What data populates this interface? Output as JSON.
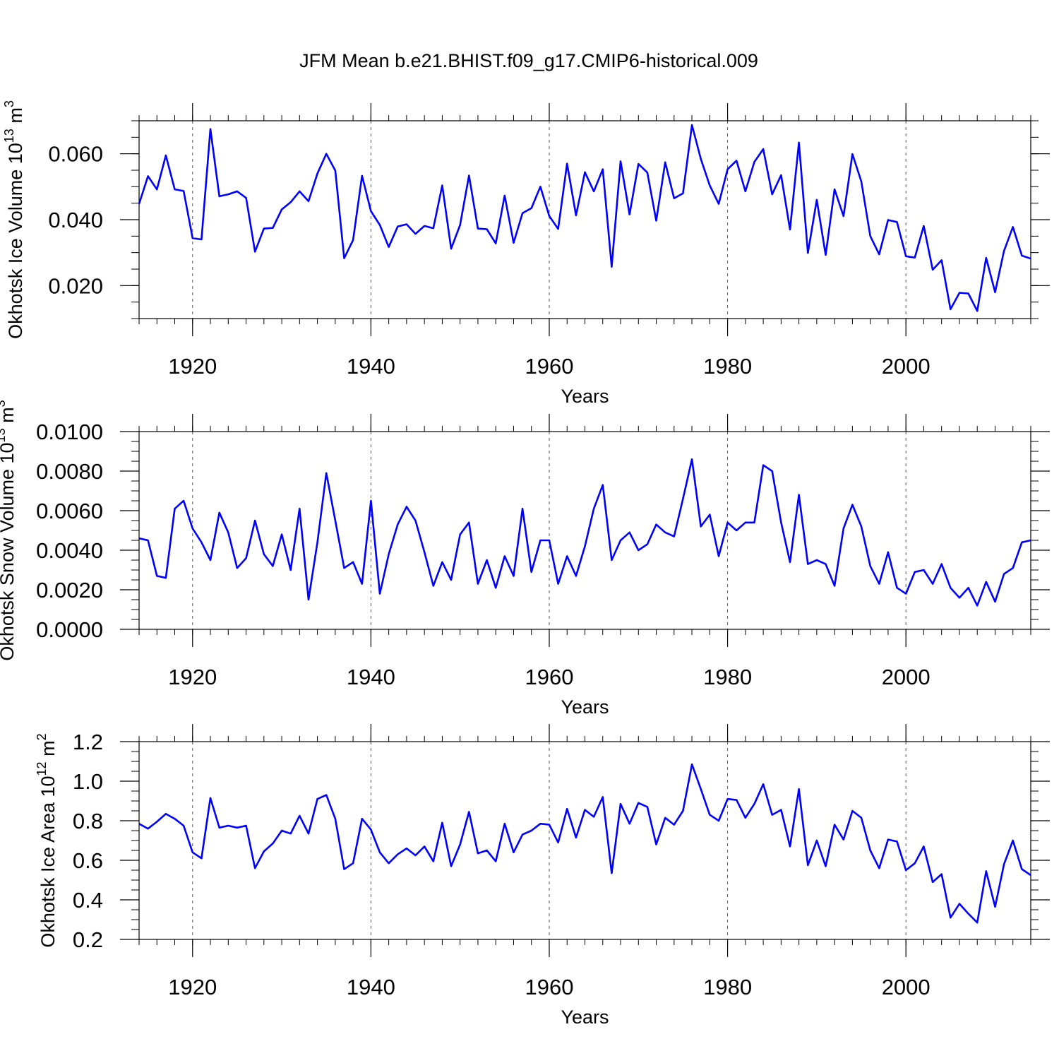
{
  "figure": {
    "title": "JFM Mean b.e21.BHIST.f09_g17.CMIP6-historical.009"
  },
  "chart_data": [
    {
      "type": "line",
      "ylabel_main": "Okhotsk Ice Volume 10",
      "ylabel_exp": "13",
      "ylabel_unit": " m",
      "ylabel_unit_exp": "3",
      "xlabel": "Years",
      "xlim": [
        1914,
        2014
      ],
      "ylim": [
        0.01,
        0.07
      ],
      "x_ticks": [
        1920,
        1940,
        1960,
        1980,
        2000
      ],
      "x_tick_labels": [
        "1920",
        "1940",
        "1960",
        "1980",
        "2000"
      ],
      "y_ticks": [
        0.02,
        0.04,
        0.06
      ],
      "y_tick_labels": [
        "0.020",
        "0.040",
        "0.060"
      ],
      "y_minor_step": 0.005,
      "line_color": "#0000ff",
      "grid": "dashed-vertical-at-major-x",
      "x_start": 1914,
      "values": [
        0.0448,
        0.0532,
        0.0492,
        0.0595,
        0.0492,
        0.0487,
        0.0344,
        0.034,
        0.0675,
        0.0471,
        0.0477,
        0.0486,
        0.0466,
        0.0303,
        0.0373,
        0.0375,
        0.0431,
        0.0453,
        0.0486,
        0.0456,
        0.054,
        0.06,
        0.0549,
        0.0283,
        0.0338,
        0.0533,
        0.0426,
        0.0384,
        0.0317,
        0.0379,
        0.0386,
        0.0357,
        0.0381,
        0.0374,
        0.0504,
        0.0312,
        0.0384,
        0.0534,
        0.0373,
        0.0371,
        0.0328,
        0.0473,
        0.033,
        0.042,
        0.0435,
        0.05,
        0.0411,
        0.0372,
        0.057,
        0.0413,
        0.0544,
        0.0486,
        0.0553,
        0.0257,
        0.0577,
        0.0416,
        0.0569,
        0.0543,
        0.0397,
        0.0574,
        0.0465,
        0.048,
        0.0687,
        0.0584,
        0.0504,
        0.0448,
        0.0553,
        0.0579,
        0.0486,
        0.0575,
        0.0614,
        0.0477,
        0.0535,
        0.037,
        0.0634,
        0.0299,
        0.046,
        0.0293,
        0.0492,
        0.0411,
        0.0599,
        0.0516,
        0.035,
        0.0295,
        0.0399,
        0.0393,
        0.0289,
        0.0285,
        0.0381,
        0.0248,
        0.0277,
        0.0128,
        0.0178,
        0.0176,
        0.0123,
        0.0284,
        0.018,
        0.0305,
        0.0378,
        0.0291,
        0.0282
      ]
    },
    {
      "type": "line",
      "ylabel_main": "Okhotsk Snow Volume 10",
      "ylabel_exp": "13",
      "ylabel_unit": " m",
      "ylabel_unit_exp": "3",
      "xlabel": "Years",
      "xlim": [
        1914,
        2014
      ],
      "ylim": [
        0.0,
        0.01
      ],
      "x_ticks": [
        1920,
        1940,
        1960,
        1980,
        2000
      ],
      "x_tick_labels": [
        "1920",
        "1940",
        "1960",
        "1980",
        "2000"
      ],
      "y_ticks": [
        0.0,
        0.002,
        0.004,
        0.006,
        0.008,
        0.01
      ],
      "y_tick_labels": [
        "0.0000",
        "0.0020",
        "0.0040",
        "0.0060",
        "0.0080",
        "0.0100"
      ],
      "y_minor_step": 0.0005,
      "line_color": "#0000ff",
      "grid": "dashed-vertical-at-major-x",
      "x_start": 1914,
      "values": [
        0.0046,
        0.0045,
        0.0027,
        0.0026,
        0.0061,
        0.0065,
        0.0051,
        0.0044,
        0.0035,
        0.0059,
        0.0049,
        0.0031,
        0.0036,
        0.0055,
        0.0038,
        0.0032,
        0.0048,
        0.003,
        0.0061,
        0.0015,
        0.0044,
        0.0079,
        0.0055,
        0.0031,
        0.0034,
        0.0023,
        0.0065,
        0.0018,
        0.0038,
        0.0053,
        0.0062,
        0.0055,
        0.0039,
        0.0022,
        0.0034,
        0.0025,
        0.0048,
        0.0054,
        0.0023,
        0.0035,
        0.0021,
        0.0037,
        0.0027,
        0.0061,
        0.0029,
        0.0045,
        0.0045,
        0.0023,
        0.0037,
        0.0027,
        0.0042,
        0.0061,
        0.0073,
        0.0035,
        0.0045,
        0.0049,
        0.004,
        0.0043,
        0.0053,
        0.0049,
        0.0047,
        0.0066,
        0.0086,
        0.0052,
        0.0058,
        0.0037,
        0.0054,
        0.005,
        0.0054,
        0.0054,
        0.0083,
        0.008,
        0.0054,
        0.0034,
        0.0068,
        0.0033,
        0.0035,
        0.0033,
        0.0022,
        0.0051,
        0.0063,
        0.0052,
        0.0032,
        0.0023,
        0.0039,
        0.0021,
        0.0018,
        0.0029,
        0.003,
        0.0023,
        0.0033,
        0.0021,
        0.0016,
        0.0021,
        0.0012,
        0.0024,
        0.0014,
        0.0028,
        0.0031,
        0.0044,
        0.0045
      ]
    },
    {
      "type": "line",
      "ylabel_main": "Okhotsk Ice Area 10",
      "ylabel_exp": "12",
      "ylabel_unit": " m",
      "ylabel_unit_exp": "2",
      "xlabel": "Years",
      "xlim": [
        1914,
        2014
      ],
      "ylim": [
        0.2,
        1.2
      ],
      "x_ticks": [
        1920,
        1940,
        1960,
        1980,
        2000
      ],
      "x_tick_labels": [
        "1920",
        "1940",
        "1960",
        "1980",
        "2000"
      ],
      "y_ticks": [
        0.2,
        0.4,
        0.6,
        0.8,
        1.0,
        1.2
      ],
      "y_tick_labels": [
        "0.2",
        "0.4",
        "0.6",
        "0.8",
        "1.0",
        "1.2"
      ],
      "y_minor_step": 0.05,
      "line_color": "#0000ff",
      "grid": "dashed-vertical-at-major-x",
      "x_start": 1914,
      "values": [
        0.785,
        0.76,
        0.795,
        0.835,
        0.81,
        0.775,
        0.64,
        0.61,
        0.915,
        0.765,
        0.775,
        0.765,
        0.775,
        0.56,
        0.645,
        0.685,
        0.75,
        0.735,
        0.825,
        0.735,
        0.91,
        0.93,
        0.81,
        0.555,
        0.585,
        0.81,
        0.755,
        0.64,
        0.585,
        0.63,
        0.66,
        0.625,
        0.67,
        0.595,
        0.79,
        0.57,
        0.68,
        0.845,
        0.635,
        0.65,
        0.595,
        0.785,
        0.64,
        0.73,
        0.75,
        0.785,
        0.78,
        0.69,
        0.86,
        0.715,
        0.855,
        0.82,
        0.92,
        0.535,
        0.885,
        0.785,
        0.89,
        0.87,
        0.68,
        0.815,
        0.78,
        0.85,
        1.085,
        0.96,
        0.83,
        0.8,
        0.91,
        0.905,
        0.815,
        0.885,
        0.985,
        0.83,
        0.855,
        0.67,
        0.96,
        0.575,
        0.7,
        0.57,
        0.78,
        0.705,
        0.85,
        0.815,
        0.65,
        0.56,
        0.705,
        0.695,
        0.55,
        0.585,
        0.67,
        0.49,
        0.53,
        0.31,
        0.38,
        0.33,
        0.285,
        0.545,
        0.365,
        0.58,
        0.7,
        0.555,
        0.525
      ]
    }
  ]
}
